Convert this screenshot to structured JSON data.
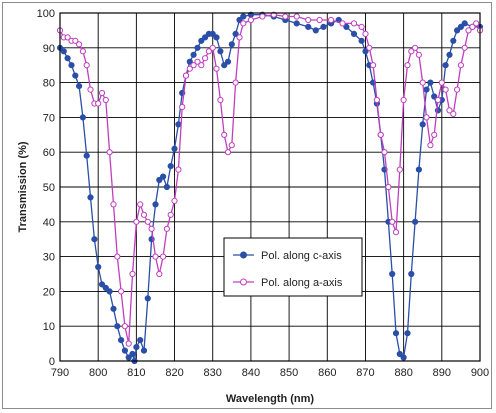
{
  "chart_data": {
    "type": "line",
    "xlabel": "Wavelength (nm)",
    "ylabel": "Transmission (%)",
    "xlim": [
      790,
      900
    ],
    "ylim": [
      0,
      100
    ],
    "xticks": [
      790,
      800,
      810,
      820,
      830,
      840,
      850,
      860,
      870,
      880,
      890,
      900
    ],
    "yticks": [
      0,
      10,
      20,
      30,
      40,
      50,
      60,
      70,
      80,
      90,
      100
    ],
    "grid": true,
    "legend_position": "center",
    "series": [
      {
        "name": "Pol. along c-axis",
        "color": "#2a4fa8",
        "marker": "filled-circle",
        "points": [
          [
            790,
            90
          ],
          [
            791,
            89
          ],
          [
            792,
            87
          ],
          [
            793,
            85
          ],
          [
            794,
            82
          ],
          [
            795,
            79
          ],
          [
            796,
            70
          ],
          [
            797,
            59
          ],
          [
            798,
            47
          ],
          [
            799,
            35
          ],
          [
            800,
            27
          ],
          [
            801,
            22
          ],
          [
            802,
            21
          ],
          [
            803,
            20
          ],
          [
            804,
            15
          ],
          [
            805,
            10
          ],
          [
            806,
            6
          ],
          [
            807,
            3
          ],
          [
            808,
            1
          ],
          [
            809,
            2
          ],
          [
            809.5,
            0
          ],
          [
            810,
            4
          ],
          [
            811,
            6
          ],
          [
            812,
            3
          ],
          [
            813,
            18
          ],
          [
            814,
            35
          ],
          [
            815,
            45
          ],
          [
            816,
            52
          ],
          [
            817,
            53
          ],
          [
            818,
            50
          ],
          [
            819,
            56
          ],
          [
            820,
            61
          ],
          [
            821,
            68
          ],
          [
            822,
            77
          ],
          [
            823,
            82
          ],
          [
            824,
            86
          ],
          [
            825,
            88
          ],
          [
            826,
            90
          ],
          [
            827,
            92
          ],
          [
            828,
            93
          ],
          [
            829,
            94
          ],
          [
            830,
            94
          ],
          [
            831,
            93
          ],
          [
            832,
            89
          ],
          [
            833,
            85
          ],
          [
            834,
            86
          ],
          [
            835,
            91
          ],
          [
            836,
            94
          ],
          [
            837,
            98
          ],
          [
            838,
            99
          ],
          [
            840,
            99.5
          ],
          [
            843,
            99.5
          ],
          [
            846,
            99
          ],
          [
            849,
            98
          ],
          [
            852,
            97
          ],
          [
            855,
            96
          ],
          [
            857,
            95
          ],
          [
            859,
            96
          ],
          [
            861,
            97
          ],
          [
            863,
            98
          ],
          [
            865,
            96
          ],
          [
            867,
            94
          ],
          [
            869,
            92
          ],
          [
            870,
            89
          ],
          [
            871,
            85
          ],
          [
            872,
            80
          ],
          [
            873,
            74
          ],
          [
            874,
            65
          ],
          [
            875,
            55
          ],
          [
            876,
            40
          ],
          [
            877,
            25
          ],
          [
            878,
            8
          ],
          [
            879,
            2
          ],
          [
            880,
            1
          ],
          [
            881,
            8
          ],
          [
            882,
            25
          ],
          [
            883,
            40
          ],
          [
            884,
            55
          ],
          [
            885,
            68
          ],
          [
            886,
            78
          ],
          [
            887,
            80
          ],
          [
            888,
            76
          ],
          [
            889,
            72
          ],
          [
            890,
            75
          ],
          [
            891,
            85
          ],
          [
            892,
            88
          ],
          [
            893,
            92
          ],
          [
            894,
            95
          ],
          [
            895,
            96
          ],
          [
            896,
            97
          ],
          [
            898,
            96
          ],
          [
            900,
            96
          ]
        ]
      },
      {
        "name": "Pol. along a-axis",
        "color": "#c03fc0",
        "marker": "open-circle",
        "points": [
          [
            790,
            95
          ],
          [
            791,
            93
          ],
          [
            792,
            93
          ],
          [
            793,
            92
          ],
          [
            794,
            92
          ],
          [
            795,
            91
          ],
          [
            796,
            89
          ],
          [
            797,
            85
          ],
          [
            798,
            78
          ],
          [
            799,
            74
          ],
          [
            800,
            74
          ],
          [
            801,
            77
          ],
          [
            802,
            75
          ],
          [
            803,
            60
          ],
          [
            804,
            45
          ],
          [
            805,
            30
          ],
          [
            806,
            20
          ],
          [
            807,
            10
          ],
          [
            808,
            5
          ],
          [
            809,
            25
          ],
          [
            810,
            40
          ],
          [
            811,
            45
          ],
          [
            812,
            42
          ],
          [
            813,
            40
          ],
          [
            814,
            38
          ],
          [
            815,
            30
          ],
          [
            816,
            25
          ],
          [
            817,
            30
          ],
          [
            818,
            38
          ],
          [
            819,
            42
          ],
          [
            820,
            46
          ],
          [
            821,
            55
          ],
          [
            822,
            73
          ],
          [
            823,
            82
          ],
          [
            824,
            84
          ],
          [
            825,
            85
          ],
          [
            826,
            86
          ],
          [
            827,
            85
          ],
          [
            828,
            87
          ],
          [
            829,
            89
          ],
          [
            830,
            90
          ],
          [
            831,
            84
          ],
          [
            832,
            75
          ],
          [
            833,
            65
          ],
          [
            834,
            60
          ],
          [
            835,
            62
          ],
          [
            836,
            80
          ],
          [
            837,
            93
          ],
          [
            838,
            97
          ],
          [
            840,
            98
          ],
          [
            843,
            99
          ],
          [
            846,
            99.5
          ],
          [
            849,
            99
          ],
          [
            852,
            99
          ],
          [
            855,
            98
          ],
          [
            858,
            98
          ],
          [
            861,
            98
          ],
          [
            864,
            97
          ],
          [
            867,
            97
          ],
          [
            869,
            96
          ],
          [
            870,
            94
          ],
          [
            871,
            90
          ],
          [
            872,
            85
          ],
          [
            873,
            75
          ],
          [
            874,
            65
          ],
          [
            875,
            60
          ],
          [
            876,
            50
          ],
          [
            877,
            40
          ],
          [
            878,
            37
          ],
          [
            879,
            55
          ],
          [
            880,
            75
          ],
          [
            881,
            85
          ],
          [
            882,
            89
          ],
          [
            883,
            90
          ],
          [
            884,
            88
          ],
          [
            885,
            80
          ],
          [
            886,
            70
          ],
          [
            887,
            62
          ],
          [
            888,
            65
          ],
          [
            889,
            75
          ],
          [
            890,
            80
          ],
          [
            891,
            78
          ],
          [
            892,
            72
          ],
          [
            893,
            71
          ],
          [
            894,
            78
          ],
          [
            895,
            85
          ],
          [
            896,
            90
          ],
          [
            897,
            95
          ],
          [
            898,
            96
          ],
          [
            899,
            97
          ],
          [
            900,
            95
          ]
        ]
      }
    ]
  }
}
